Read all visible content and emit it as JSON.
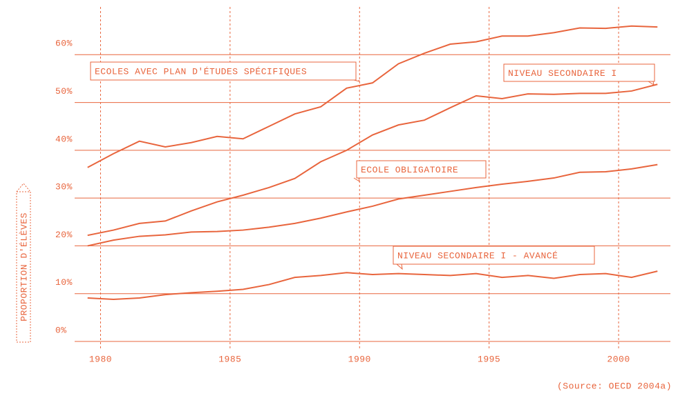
{
  "chart_data": {
    "type": "line",
    "y_label": "PROPORTION D'ÉLÈVES",
    "source": "(Source: OECD 2004a)",
    "color": "#e8643c",
    "grid": true,
    "xlim": [
      1979,
      2002
    ],
    "xticks": [
      1980,
      1985,
      1990,
      1995,
      2000
    ],
    "ylim": [
      0,
      70
    ],
    "yticks": [
      {
        "value": 0,
        "label": "0%"
      },
      {
        "value": 10,
        "label": "10%"
      },
      {
        "value": 20,
        "label": "20%"
      },
      {
        "value": 30,
        "label": "30%"
      },
      {
        "value": 40,
        "label": "40%"
      },
      {
        "value": 50,
        "label": "50%"
      },
      {
        "value": 60,
        "label": "60%"
      }
    ],
    "x": [
      1979.5,
      1980.5,
      1981.5,
      1982.5,
      1983.5,
      1984.5,
      1985.5,
      1986.5,
      1987.5,
      1988.5,
      1989.5,
      1990.5,
      1991.5,
      1992.5,
      1993.5,
      1994.5,
      1995.5,
      1996.5,
      1997.5,
      1998.5,
      1999.5,
      2000.5,
      2001.5
    ],
    "series": [
      {
        "name": "ECOLES AVEC PLAN D'ÉTUDES SPÉCIFIQUES",
        "color": "#e8643c",
        "values": [
          36.4,
          39.3,
          41.9,
          40.7,
          41.6,
          42.9,
          42.4,
          45.0,
          47.6,
          49.1,
          53.0,
          54.1,
          58.1,
          60.3,
          62.2,
          62.7,
          63.9,
          63.9,
          64.6,
          65.6,
          65.5,
          66.0,
          65.8
        ]
      },
      {
        "name": "NIVEAU SECONDAIRE I",
        "color": "#e8643c",
        "values": [
          22.2,
          23.3,
          24.7,
          25.2,
          27.3,
          29.2,
          30.6,
          32.2,
          34.1,
          37.6,
          40.0,
          43.2,
          45.3,
          46.3,
          48.9,
          51.4,
          50.8,
          51.8,
          51.7,
          51.9,
          51.9,
          52.4,
          53.8
        ]
      },
      {
        "name": "ECOLE OBLIGATOIRE",
        "color": "#e8643c",
        "values": [
          20.0,
          21.2,
          22.0,
          22.3,
          22.9,
          23.0,
          23.3,
          23.9,
          24.7,
          25.8,
          27.1,
          28.3,
          29.8,
          30.6,
          31.4,
          32.2,
          32.9,
          33.5,
          34.2,
          35.4,
          35.5,
          36.1,
          37.0
        ]
      },
      {
        "name": "NIVEAU SECONDAIRE I - AVANCÉ",
        "color": "#e8643c",
        "values": [
          9.1,
          8.8,
          9.1,
          9.8,
          10.2,
          10.5,
          10.9,
          11.9,
          13.4,
          13.8,
          14.4,
          14.0,
          14.2,
          14.0,
          13.8,
          14.2,
          13.4,
          13.8,
          13.2,
          14.0,
          14.2,
          13.4,
          14.7
        ]
      }
    ]
  }
}
